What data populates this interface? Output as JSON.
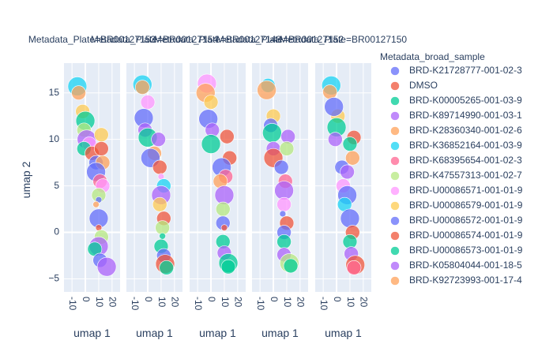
{
  "chart_data": {
    "type": "scatter",
    "subtype": "faceted-bubble",
    "xlabel": "umap 1",
    "ylabel": "umap 2",
    "xlim": [
      -16,
      26
    ],
    "ylim": [
      -6.4,
      18.2
    ],
    "x_ticks": [
      -10,
      0,
      10,
      20
    ],
    "y_ticks": [
      -5,
      0,
      5,
      10,
      15
    ],
    "grid": true,
    "legend_placement": "right",
    "legend_title": "Metadata_broad_sample",
    "facet_titles": [
      "Metadata_Plate=BR00127153",
      "Metadata_Plate=BR00127154",
      "Metadata_Plate=BR00127148",
      "Metadata_Plate=BR00127152",
      "Metadata_Plate=BR00127150"
    ],
    "series": [
      {
        "name": "BRD-K21728777-001-02-3",
        "color": "#636efa"
      },
      {
        "name": "DMSO",
        "color": "#EF553B"
      },
      {
        "name": "BRD-K00005265-001-03-9",
        "color": "#00cc96"
      },
      {
        "name": "BRD-K89714990-001-03-1",
        "color": "#ab63fa"
      },
      {
        "name": "BRD-K28360340-001-02-6",
        "color": "#FFA15A"
      },
      {
        "name": "BRD-K36852164-001-03-9",
        "color": "#19d3f3"
      },
      {
        "name": "BRD-K68395654-001-02-3",
        "color": "#FF6692"
      },
      {
        "name": "BRD-K47557313-001-02-7",
        "color": "#B6E880"
      },
      {
        "name": "BRD-U00086571-001-01-9",
        "color": "#FF97FF"
      },
      {
        "name": "BRD-U00086579-001-01-9",
        "color": "#FECB52"
      },
      {
        "name": "BRD-U00086572-001-01-9",
        "color": "#636efa"
      },
      {
        "name": "BRD-U00086574-001-01-9",
        "color": "#EF553B"
      },
      {
        "name": "BRD-U00086573-001-01-9",
        "color": "#00cc96"
      },
      {
        "name": "BRD-K05804044-001-18-5",
        "color": "#ab63fa"
      },
      {
        "name": "BRD-K92723993-001-17-4",
        "color": "#FFA15A"
      }
    ],
    "facets": [
      [
        {
          "x": -6,
          "y": 15.7,
          "s": 3,
          "c": 5
        },
        {
          "x": -5,
          "y": 15.0,
          "s": 2,
          "c": 4
        },
        {
          "x": -2,
          "y": 13.0,
          "s": 2,
          "c": 9
        },
        {
          "x": 0,
          "y": 12.0,
          "s": 3,
          "c": 2
        },
        {
          "x": -1,
          "y": 11.0,
          "s": 2,
          "c": 7
        },
        {
          "x": 1,
          "y": 10.0,
          "s": 3,
          "c": 3
        },
        {
          "x": 3,
          "y": 9.5,
          "s": 2,
          "c": 8
        },
        {
          "x": -1,
          "y": 9.0,
          "s": 2,
          "c": 2
        },
        {
          "x": 5,
          "y": 8.5,
          "s": 2,
          "c": 1
        },
        {
          "x": 8,
          "y": 7.5,
          "s": 2,
          "c": 0
        },
        {
          "x": 12,
          "y": 10.5,
          "s": 2,
          "c": 9
        },
        {
          "x": 12,
          "y": 9.0,
          "s": 2,
          "c": 1
        },
        {
          "x": 13,
          "y": 7.5,
          "s": 2,
          "c": 4
        },
        {
          "x": 8,
          "y": 6.5,
          "s": 3,
          "c": 10
        },
        {
          "x": 11,
          "y": 5.5,
          "s": 2,
          "c": 6
        },
        {
          "x": 13,
          "y": 5.0,
          "s": 2,
          "c": 8
        },
        {
          "x": 10,
          "y": 4.0,
          "s": 2,
          "c": 7
        },
        {
          "x": 10,
          "y": 3.5,
          "s": 1,
          "c": 0
        },
        {
          "x": 8,
          "y": 3.0,
          "s": 1,
          "c": 4
        },
        {
          "x": 10,
          "y": 1.5,
          "s": 3,
          "c": 0
        },
        {
          "x": 10,
          "y": 0.5,
          "s": 1,
          "c": 1
        },
        {
          "x": 12,
          "y": -0.5,
          "s": 2,
          "c": 7
        },
        {
          "x": 10,
          "y": -1.5,
          "s": 3,
          "c": 3
        },
        {
          "x": 7,
          "y": -1.8,
          "s": 2,
          "c": 2
        },
        {
          "x": 11,
          "y": -3.0,
          "s": 2,
          "c": 10
        },
        {
          "x": 16,
          "y": -3.7,
          "s": 3,
          "c": 13
        }
      ],
      [
        {
          "x": -4,
          "y": 15.9,
          "s": 3,
          "c": 5
        },
        {
          "x": -4,
          "y": 15.6,
          "s": 2,
          "c": 4
        },
        {
          "x": 0,
          "y": 14.0,
          "s": 2,
          "c": 8
        },
        {
          "x": -3,
          "y": 12.3,
          "s": 3,
          "c": 0
        },
        {
          "x": -2,
          "y": 11.0,
          "s": 2,
          "c": 3
        },
        {
          "x": 0,
          "y": 10.2,
          "s": 3,
          "c": 2
        },
        {
          "x": 8,
          "y": 10.0,
          "s": 2,
          "c": 3
        },
        {
          "x": 5,
          "y": 8.5,
          "s": 2,
          "c": 4
        },
        {
          "x": 2,
          "y": 8.0,
          "s": 3,
          "c": 10
        },
        {
          "x": 9,
          "y": 7.0,
          "s": 2,
          "c": 11
        },
        {
          "x": 10,
          "y": 6.0,
          "s": 1,
          "c": 8
        },
        {
          "x": 12,
          "y": 5.0,
          "s": 2,
          "c": 5
        },
        {
          "x": 10,
          "y": 4.0,
          "s": 3,
          "c": 13
        },
        {
          "x": 9,
          "y": 3.0,
          "s": 2,
          "c": 9
        },
        {
          "x": 12,
          "y": 1.5,
          "s": 2,
          "c": 1
        },
        {
          "x": 11,
          "y": 0.5,
          "s": 2,
          "c": 7
        },
        {
          "x": 11,
          "y": -0.4,
          "s": 1,
          "c": 2
        },
        {
          "x": 10,
          "y": -1.5,
          "s": 2,
          "c": 2
        },
        {
          "x": 12,
          "y": -2.5,
          "s": 2,
          "c": 0
        },
        {
          "x": 13,
          "y": -3.4,
          "s": 3,
          "c": 11
        },
        {
          "x": 14,
          "y": -3.8,
          "s": 2,
          "c": 12
        }
      ],
      [
        {
          "x": -3,
          "y": 16.0,
          "s": 3,
          "c": 8
        },
        {
          "x": -4,
          "y": 15.0,
          "s": 3,
          "c": 4
        },
        {
          "x": 0,
          "y": 14.0,
          "s": 2,
          "c": 9
        },
        {
          "x": -2,
          "y": 12.2,
          "s": 3,
          "c": 0
        },
        {
          "x": 1,
          "y": 11.0,
          "s": 2,
          "c": 3
        },
        {
          "x": 0,
          "y": 9.5,
          "s": 3,
          "c": 2
        },
        {
          "x": 12,
          "y": 10.3,
          "s": 2,
          "c": 1
        },
        {
          "x": 14,
          "y": 8.0,
          "s": 2,
          "c": 11
        },
        {
          "x": 8,
          "y": 7.0,
          "s": 3,
          "c": 10
        },
        {
          "x": 11,
          "y": 6.0,
          "s": 2,
          "c": 6
        },
        {
          "x": 7,
          "y": 5.5,
          "s": 2,
          "c": 4
        },
        {
          "x": 10,
          "y": 4.0,
          "s": 3,
          "c": 13
        },
        {
          "x": 9,
          "y": 2.5,
          "s": 2,
          "c": 7
        },
        {
          "x": 9,
          "y": 1.0,
          "s": 2,
          "c": 0
        },
        {
          "x": 10,
          "y": 0.5,
          "s": 1,
          "c": 1
        },
        {
          "x": 9,
          "y": -1.0,
          "s": 2,
          "c": 2
        },
        {
          "x": 10,
          "y": -2.2,
          "s": 2,
          "c": 3
        },
        {
          "x": 13,
          "y": -3.3,
          "s": 3,
          "c": 12
        },
        {
          "x": 13,
          "y": -3.7,
          "s": 2,
          "c": 12
        }
      ],
      [
        {
          "x": -4,
          "y": 15.8,
          "s": 2,
          "c": 5
        },
        {
          "x": -5,
          "y": 15.3,
          "s": 3,
          "c": 4
        },
        {
          "x": 0,
          "y": 12.5,
          "s": 2,
          "c": 9
        },
        {
          "x": -2,
          "y": 11.5,
          "s": 2,
          "c": 0
        },
        {
          "x": -1,
          "y": 10.7,
          "s": 3,
          "c": 2
        },
        {
          "x": 0,
          "y": 9.0,
          "s": 2,
          "c": 3
        },
        {
          "x": 0,
          "y": 8.0,
          "s": 3,
          "c": 11
        },
        {
          "x": 11,
          "y": 10.3,
          "s": 2,
          "c": 3
        },
        {
          "x": 10,
          "y": 9.0,
          "s": 2,
          "c": 7
        },
        {
          "x": 6,
          "y": 7.0,
          "s": 2,
          "c": 0
        },
        {
          "x": 9,
          "y": 5.5,
          "s": 2,
          "c": 6
        },
        {
          "x": 8,
          "y": 4.5,
          "s": 3,
          "c": 13
        },
        {
          "x": 8,
          "y": 3.0,
          "s": 2,
          "c": 8
        },
        {
          "x": 7,
          "y": 2.0,
          "s": 1,
          "c": 0
        },
        {
          "x": 10,
          "y": 1.0,
          "s": 2,
          "c": 1
        },
        {
          "x": 8,
          "y": 0.0,
          "s": 2,
          "c": 10
        },
        {
          "x": 8,
          "y": -1.0,
          "s": 2,
          "c": 12
        },
        {
          "x": 8,
          "y": -2.4,
          "s": 2,
          "c": 3
        },
        {
          "x": 12,
          "y": -3.3,
          "s": 3,
          "c": 7
        },
        {
          "x": 13,
          "y": -3.6,
          "s": 2,
          "c": 12
        }
      ],
      [
        {
          "x": -4,
          "y": 15.8,
          "s": 3,
          "c": 5
        },
        {
          "x": -5,
          "y": 15.1,
          "s": 2,
          "c": 4
        },
        {
          "x": 1,
          "y": 12.5,
          "s": 2,
          "c": 9
        },
        {
          "x": -2,
          "y": 13.5,
          "s": 3,
          "c": 0
        },
        {
          "x": 0,
          "y": 11.3,
          "s": 3,
          "c": 2
        },
        {
          "x": -1,
          "y": 10.0,
          "s": 2,
          "c": 3
        },
        {
          "x": 13,
          "y": 10.2,
          "s": 2,
          "c": 1
        },
        {
          "x": 10,
          "y": 9.5,
          "s": 2,
          "c": 2
        },
        {
          "x": 12,
          "y": 8.0,
          "s": 2,
          "c": 4
        },
        {
          "x": 4,
          "y": 7.0,
          "s": 2,
          "c": 0
        },
        {
          "x": 8,
          "y": 6.5,
          "s": 2,
          "c": 13
        },
        {
          "x": 5,
          "y": 5.0,
          "s": 2,
          "c": 8
        },
        {
          "x": 8,
          "y": 4.0,
          "s": 3,
          "c": 10
        },
        {
          "x": 6,
          "y": 3.0,
          "s": 2,
          "c": 5
        },
        {
          "x": 10,
          "y": 1.5,
          "s": 3,
          "c": 0
        },
        {
          "x": 12,
          "y": 0.0,
          "s": 2,
          "c": 11
        },
        {
          "x": 10,
          "y": -1.0,
          "s": 2,
          "c": 12
        },
        {
          "x": 11,
          "y": -2.3,
          "s": 2,
          "c": 3
        },
        {
          "x": 14,
          "y": -3.5,
          "s": 3,
          "c": 1
        },
        {
          "x": 13,
          "y": -3.8,
          "s": 2,
          "c": 6
        }
      ]
    ]
  }
}
